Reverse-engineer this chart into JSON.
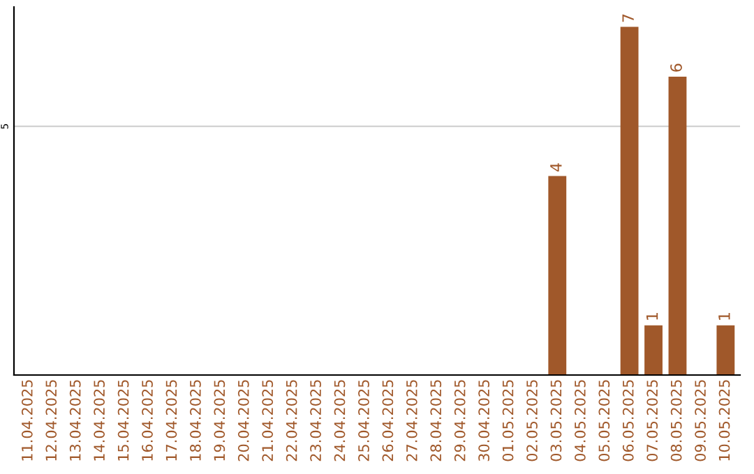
{
  "chart_data": {
    "type": "bar",
    "categories": [
      "11.04.2025",
      "12.04.2025",
      "13.04.2025",
      "14.04.2025",
      "15.04.2025",
      "16.04.2025",
      "17.04.2025",
      "18.04.2025",
      "19.04.2025",
      "20.04.2025",
      "21.04.2025",
      "22.04.2025",
      "23.04.2025",
      "24.04.2025",
      "25.04.2025",
      "26.04.2025",
      "27.04.2025",
      "28.04.2025",
      "29.04.2025",
      "30.04.2025",
      "01.05.2025",
      "02.05.2025",
      "03.05.2025",
      "04.05.2025",
      "05.05.2025",
      "06.05.2025",
      "07.05.2025",
      "08.05.2025",
      "09.05.2025",
      "10.05.2025"
    ],
    "values": [
      null,
      null,
      null,
      null,
      null,
      null,
      null,
      null,
      null,
      null,
      null,
      null,
      null,
      null,
      null,
      null,
      null,
      null,
      null,
      null,
      null,
      null,
      4,
      null,
      null,
      7,
      1,
      6,
      null,
      1
    ],
    "data_labels": true,
    "color": "#a0582a",
    "ylim": [
      0,
      7.4
    ],
    "yticks": [
      5
    ],
    "grid": "y"
  }
}
